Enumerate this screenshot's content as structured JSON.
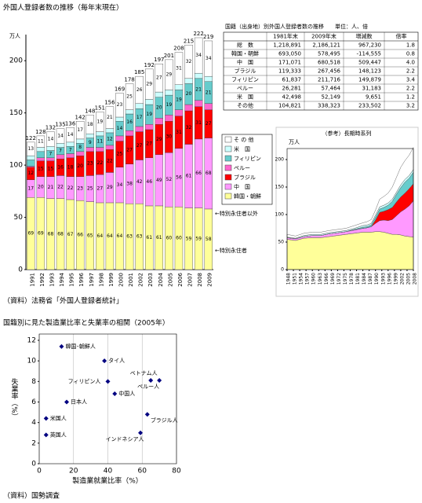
{
  "chart_data": [
    {
      "type": "bar",
      "stacked": true,
      "title": "外国人登録者数の推移（毎年末現在）",
      "ylabel": "万人",
      "categories": [
        "1991",
        "1992",
        "1993",
        "1994",
        "1995",
        "1996",
        "1997",
        "1998",
        "1999",
        "2000",
        "2001",
        "2002",
        "2003",
        "2004",
        "2005",
        "2006",
        "2007",
        "2008",
        "2009"
      ],
      "series": [
        {
          "name": "韓国・朝鮮",
          "color": "#ffff99",
          "values": [
            69,
            69,
            68,
            68,
            67,
            66,
            65,
            64,
            64,
            64,
            63,
            63,
            61,
            61,
            60,
            60,
            59,
            59,
            58
          ]
        },
        {
          "name": "中　国",
          "color": "#ff99ff",
          "values": [
            17,
            20,
            21,
            22,
            22,
            23,
            25,
            27,
            29,
            34,
            38,
            42,
            46,
            49,
            52,
            56,
            61,
            66,
            68
          ]
        },
        {
          "name": "ブラジル",
          "color": "#ff0000",
          "values": [
            12,
            15,
            15,
            16,
            18,
            20,
            23,
            22,
            22,
            25,
            27,
            27,
            27,
            29,
            30,
            31,
            32,
            31,
            27
          ]
        },
        {
          "name": "ペルー",
          "color": "#ff66cc",
          "values": [
            1,
            3,
            3,
            4,
            4,
            4,
            4,
            4,
            4,
            5,
            5,
            5,
            5,
            6,
            6,
            6,
            6,
            6,
            6
          ]
        },
        {
          "name": "フィリピン",
          "color": "#66cccc",
          "values": [
            6,
            6,
            7,
            7,
            7,
            8,
            9,
            11,
            12,
            14,
            16,
            17,
            19,
            20,
            19,
            19,
            20,
            21,
            21
          ]
        },
        {
          "name": "米　国",
          "color": "#ccffff",
          "values": [
            4,
            4,
            4,
            4,
            4,
            4,
            4,
            4,
            4,
            4,
            4,
            5,
            5,
            5,
            5,
            5,
            5,
            5,
            5
          ]
        },
        {
          "name": "そ の 他",
          "color": "#ffffff",
          "values": [
            13,
            11,
            14,
            14,
            14,
            17,
            18,
            19,
            21,
            23,
            25,
            26,
            29,
            27,
            29,
            31,
            32,
            34,
            34
          ]
        }
      ],
      "totals": [
        122,
        128,
        132,
        135,
        136,
        142,
        148,
        151,
        156,
        169,
        178,
        185,
        192,
        197,
        201,
        208,
        215,
        222,
        219
      ],
      "ylim": [
        0,
        225
      ],
      "yticks": [
        0,
        50,
        100,
        150,
        200
      ],
      "grid": false,
      "annotations": [
        "←特別永住者以外",
        "←特別永住者"
      ],
      "source": "（資料）法務省「外国人登録者統計」"
    },
    {
      "type": "area",
      "stacked": true,
      "title": "（参考）長期時系列",
      "ylabel": "万人",
      "x": [
        1948,
        1952,
        1956,
        1960,
        1964,
        1968,
        1972,
        1976,
        1980,
        1984,
        1986,
        1988,
        1990,
        1992,
        1994,
        1996,
        1998,
        2000,
        2002,
        2004,
        2006,
        2008
      ],
      "series": [
        {
          "name": "韓国・朝鮮",
          "color": "#ffff99",
          "values": [
            55,
            53,
            57,
            58,
            58,
            60,
            62,
            64,
            66,
            68,
            68,
            68,
            69,
            69,
            68,
            66,
            64,
            64,
            63,
            61,
            60,
            59
          ]
        },
        {
          "name": "中国",
          "color": "#ff99ff",
          "values": [
            3,
            3,
            3,
            4,
            4,
            5,
            5,
            5,
            6,
            7,
            8,
            10,
            15,
            20,
            22,
            23,
            27,
            34,
            42,
            49,
            56,
            66
          ]
        },
        {
          "name": "ブラジル",
          "color": "#ff0000",
          "values": [
            0,
            0,
            0,
            0,
            0,
            0,
            0,
            0,
            0,
            0,
            0,
            0,
            6,
            15,
            16,
            20,
            22,
            25,
            27,
            29,
            31,
            31
          ]
        },
        {
          "name": "フィリピン",
          "color": "#66cccc",
          "values": [
            0,
            0,
            0,
            0,
            0,
            0,
            0,
            0,
            1,
            2,
            2,
            3,
            5,
            6,
            7,
            8,
            11,
            14,
            17,
            20,
            19,
            21
          ]
        },
        {
          "name": "米国",
          "color": "#ccffff",
          "values": [
            1,
            1,
            2,
            2,
            2,
            2,
            2,
            2,
            2,
            3,
            3,
            3,
            4,
            4,
            4,
            4,
            4,
            4,
            5,
            5,
            5,
            5
          ]
        },
        {
          "name": "その他",
          "color": "#ffffff",
          "values": [
            5,
            4,
            4,
            4,
            4,
            4,
            4,
            4,
            5,
            5,
            6,
            7,
            9,
            14,
            16,
            18,
            22,
            27,
            32,
            34,
            37,
            40
          ]
        }
      ],
      "xlim": [
        1948,
        2008
      ],
      "xticks": [
        1948,
        1951,
        1954,
        1957,
        1960,
        1963,
        1966,
        1969,
        1972,
        1975,
        1978,
        1981,
        1984,
        1987,
        1990,
        1993,
        1996,
        1999,
        2002,
        2005,
        2008
      ],
      "ylim": [
        0,
        220
      ],
      "yticks": [
        0,
        50,
        100,
        150,
        200
      ]
    },
    {
      "type": "scatter",
      "title": "国籍別に見た製造業比率と失業率の相関（2005年）",
      "xlabel": "製造業就業比率（%）",
      "ylabel": "失業率（%）",
      "labels": [
        "韓国･朝鮮人",
        "タイ人",
        "ベトナム人",
        "ペルー人",
        "フィリピン人",
        "中国人",
        "日本人",
        "米国人",
        "ブラジル人",
        "インドネシア人",
        "英国人"
      ],
      "x": [
        13,
        38,
        65,
        70,
        40,
        44,
        16,
        4,
        63,
        59,
        4
      ],
      "values": [
        11.4,
        10.0,
        8.1,
        8.1,
        8.0,
        6.8,
        6.0,
        4.4,
        4.8,
        3.0,
        2.8
      ],
      "color": "#000080",
      "xlim": [
        0,
        80
      ],
      "xticks": [
        0,
        20,
        40,
        60,
        80
      ],
      "ylim": [
        0,
        12
      ],
      "yticks": [
        0,
        2,
        4,
        6,
        8,
        10,
        12
      ],
      "grid": "x",
      "source": "（資料）国勢調査"
    }
  ],
  "table": {
    "title": "国籍（出身地）別外国人登録者数の推移　　単位：人、倍",
    "header": [
      "",
      "1981年末",
      "2009年末",
      "増減数",
      "倍率"
    ],
    "rows": [
      [
        "総　数",
        "1,218,891",
        "2,186,121",
        "967,230",
        "1.8"
      ],
      [
        "韓国・朝鮮",
        "693,050",
        "578,495",
        "-114,555",
        "0.8"
      ],
      [
        "中　国",
        "171,071",
        "680,518",
        "509,447",
        "4.0"
      ],
      [
        "ブラジル",
        "119,333",
        "267,456",
        "148,123",
        "2.2"
      ],
      [
        "フィリピン",
        "61,837",
        "211,716",
        "149,879",
        "3.4"
      ],
      [
        "ペルー",
        "26,281",
        "57,464",
        "31,183",
        "2.2"
      ],
      [
        "米　国",
        "42,498",
        "52,149",
        "9,651",
        "1.2"
      ],
      [
        "その他",
        "104,821",
        "338,323",
        "233,502",
        "3.2"
      ]
    ]
  }
}
